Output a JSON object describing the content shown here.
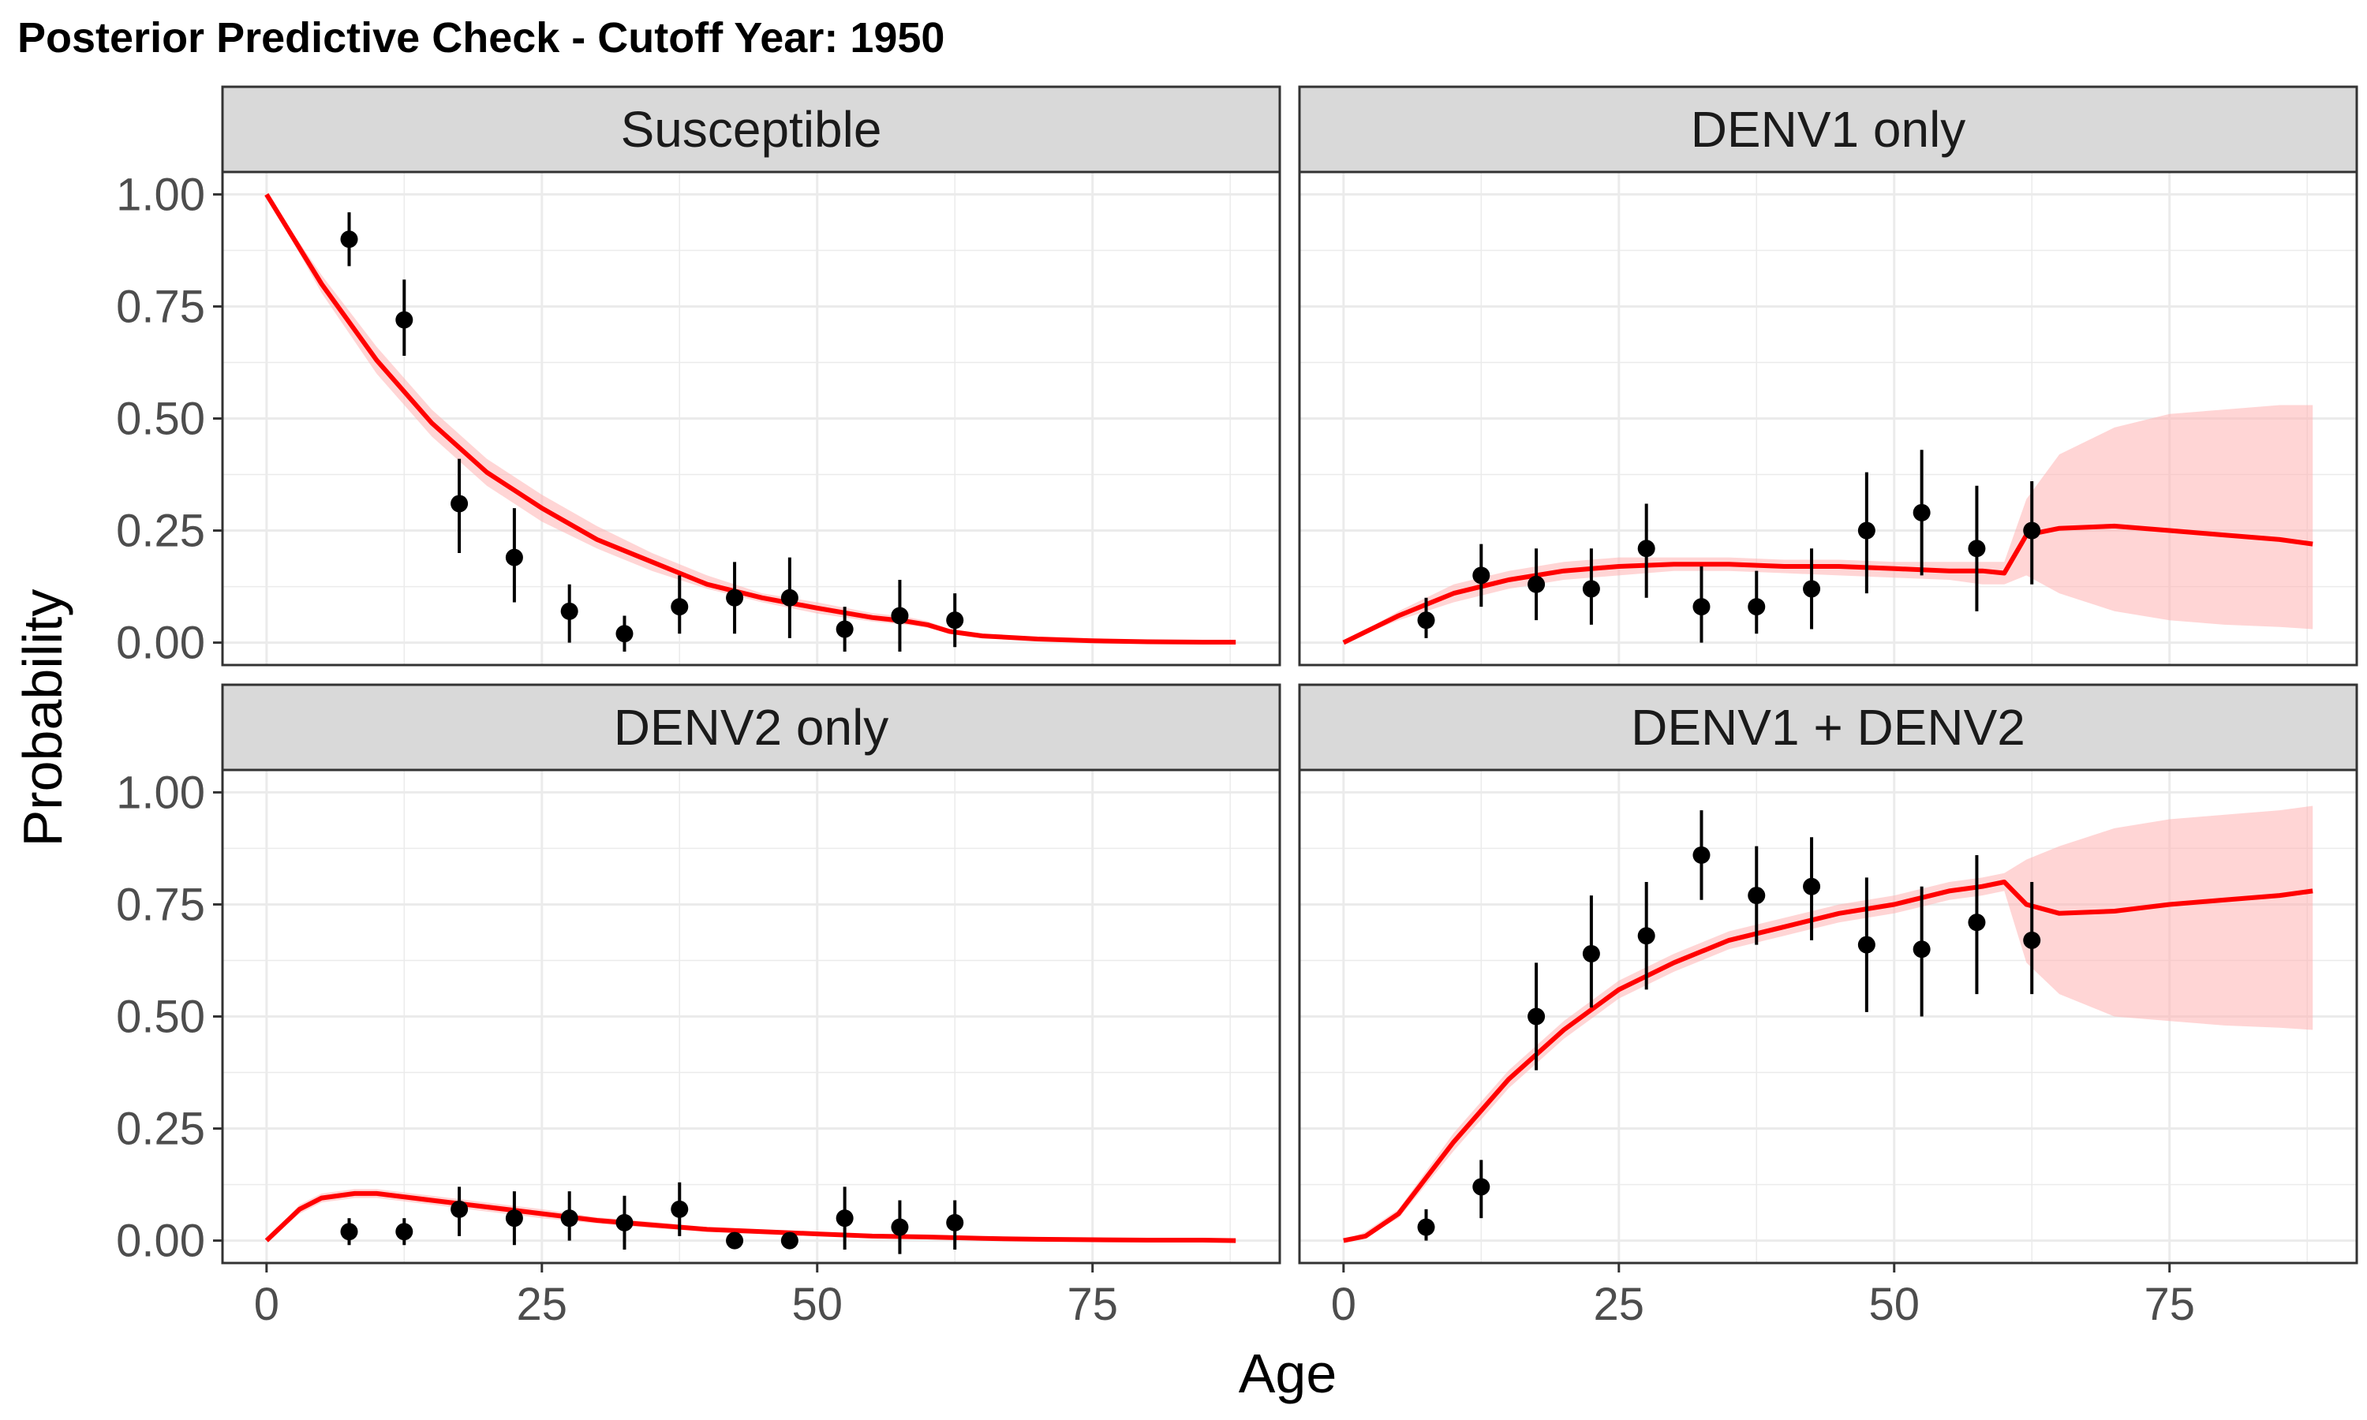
{
  "title": "Posterior Predictive Check - Cutoff Year: 1950",
  "colors": {
    "line": "#ff0000",
    "ribbon": "#ffb3b3",
    "points": "#000000",
    "strip_background": "#d9d9d9",
    "grid": "#ebebeb"
  },
  "chart_data": {
    "type": "scatter",
    "facet_layout": "2x2",
    "xlabel": "Age",
    "ylabel": "Probability",
    "xlim": [
      -4,
      92
    ],
    "ylim": [
      -0.05,
      1.05
    ],
    "xticks": [
      0,
      25,
      50,
      75
    ],
    "xtick_labels": [
      "0",
      "25",
      "50",
      "75"
    ],
    "yticks": [
      0,
      0.25,
      0.5,
      0.75,
      1.0
    ],
    "ytick_labels": [
      "0.00",
      "0.25",
      "0.50",
      "0.75",
      "1.00"
    ],
    "grid": true,
    "legend": "none",
    "panels": [
      {
        "name": "Susceptible",
        "observed": {
          "x": [
            7.5,
            12.5,
            17.5,
            22.5,
            27.5,
            32.5,
            37.5,
            42.5,
            47.5,
            52.5,
            57.5,
            62.5
          ],
          "y": [
            0.9,
            0.72,
            0.31,
            0.19,
            0.07,
            0.02,
            0.08,
            0.1,
            0.1,
            0.03,
            0.06,
            0.05
          ],
          "lower": [
            0.84,
            0.64,
            0.2,
            0.09,
            0.0,
            -0.02,
            0.02,
            0.02,
            0.01,
            -0.02,
            -0.02,
            -0.01
          ],
          "upper": [
            0.96,
            0.81,
            0.41,
            0.3,
            0.13,
            0.06,
            0.15,
            0.18,
            0.19,
            0.08,
            0.14,
            0.11
          ]
        },
        "fit": {
          "x": [
            0,
            5,
            10,
            15,
            20,
            25,
            30,
            35,
            40,
            45,
            50,
            55,
            58,
            60,
            62,
            65,
            70,
            75,
            80,
            85,
            88
          ],
          "y": [
            1.0,
            0.8,
            0.63,
            0.49,
            0.38,
            0.3,
            0.23,
            0.18,
            0.13,
            0.1,
            0.077,
            0.056,
            0.048,
            0.04,
            0.025,
            0.015,
            0.008,
            0.004,
            0.002,
            0.001,
            0.001
          ],
          "lower": [
            1.0,
            0.78,
            0.6,
            0.46,
            0.35,
            0.27,
            0.21,
            0.16,
            0.12,
            0.09,
            0.065,
            0.047,
            0.04,
            0.033,
            0.02,
            0.01,
            0.005,
            0.002,
            0.001,
            0.0,
            0.0
          ],
          "upper": [
            1.0,
            0.82,
            0.66,
            0.52,
            0.41,
            0.33,
            0.26,
            0.2,
            0.15,
            0.11,
            0.09,
            0.066,
            0.058,
            0.048,
            0.03,
            0.02,
            0.011,
            0.006,
            0.003,
            0.002,
            0.001
          ]
        }
      },
      {
        "name": "DENV1 only",
        "observed": {
          "x": [
            7.5,
            12.5,
            17.5,
            22.5,
            27.5,
            32.5,
            37.5,
            42.5,
            47.5,
            52.5,
            57.5,
            62.5
          ],
          "y": [
            0.05,
            0.15,
            0.13,
            0.12,
            0.21,
            0.08,
            0.08,
            0.12,
            0.25,
            0.29,
            0.21,
            0.25
          ],
          "lower": [
            0.01,
            0.08,
            0.05,
            0.04,
            0.1,
            0.0,
            0.02,
            0.03,
            0.11,
            0.15,
            0.07,
            0.13
          ],
          "upper": [
            0.1,
            0.22,
            0.21,
            0.21,
            0.31,
            0.17,
            0.16,
            0.21,
            0.38,
            0.43,
            0.35,
            0.36
          ]
        },
        "fit": {
          "x": [
            0,
            5,
            10,
            15,
            20,
            25,
            30,
            35,
            40,
            45,
            50,
            55,
            58,
            60,
            62,
            65,
            70,
            75,
            80,
            85,
            88
          ],
          "y": [
            0.0,
            0.06,
            0.11,
            0.14,
            0.16,
            0.17,
            0.175,
            0.175,
            0.17,
            0.17,
            0.165,
            0.16,
            0.16,
            0.155,
            0.24,
            0.255,
            0.26,
            0.25,
            0.24,
            0.23,
            0.22
          ],
          "lower": [
            0.0,
            0.05,
            0.09,
            0.12,
            0.14,
            0.15,
            0.16,
            0.16,
            0.155,
            0.15,
            0.145,
            0.14,
            0.13,
            0.13,
            0.15,
            0.11,
            0.07,
            0.05,
            0.04,
            0.035,
            0.03
          ],
          "upper": [
            0.0,
            0.07,
            0.13,
            0.16,
            0.18,
            0.19,
            0.19,
            0.19,
            0.185,
            0.185,
            0.18,
            0.18,
            0.18,
            0.18,
            0.32,
            0.42,
            0.48,
            0.51,
            0.52,
            0.53,
            0.53
          ]
        }
      },
      {
        "name": "DENV2 only",
        "observed": {
          "x": [
            7.5,
            12.5,
            17.5,
            22.5,
            27.5,
            32.5,
            37.5,
            42.5,
            47.5,
            52.5,
            57.5,
            62.5
          ],
          "y": [
            0.02,
            0.02,
            0.07,
            0.05,
            0.05,
            0.04,
            0.07,
            0.0,
            0.0,
            0.05,
            0.03,
            0.04
          ],
          "lower": [
            -0.01,
            -0.01,
            0.01,
            -0.01,
            0.0,
            -0.02,
            0.01,
            0.0,
            0.0,
            -0.02,
            -0.03,
            -0.02
          ],
          "upper": [
            0.05,
            0.05,
            0.12,
            0.11,
            0.11,
            0.1,
            0.13,
            0.0,
            0.0,
            0.12,
            0.09,
            0.09
          ]
        },
        "fit": {
          "x": [
            0,
            3,
            5,
            8,
            10,
            15,
            20,
            25,
            30,
            35,
            40,
            45,
            50,
            55,
            60,
            65,
            70,
            75,
            80,
            85,
            88
          ],
          "y": [
            0.0,
            0.07,
            0.095,
            0.105,
            0.105,
            0.09,
            0.075,
            0.06,
            0.045,
            0.035,
            0.025,
            0.02,
            0.015,
            0.01,
            0.008,
            0.005,
            0.003,
            0.002,
            0.001,
            0.001,
            0.0
          ],
          "lower": [
            0.0,
            0.06,
            0.085,
            0.095,
            0.095,
            0.08,
            0.065,
            0.05,
            0.038,
            0.028,
            0.02,
            0.015,
            0.011,
            0.008,
            0.005,
            0.003,
            0.002,
            0.001,
            0.0,
            0.0,
            0.0
          ],
          "upper": [
            0.0,
            0.08,
            0.105,
            0.115,
            0.115,
            0.1,
            0.085,
            0.07,
            0.052,
            0.042,
            0.03,
            0.025,
            0.019,
            0.013,
            0.011,
            0.007,
            0.004,
            0.003,
            0.002,
            0.001,
            0.001
          ]
        }
      },
      {
        "name": "DENV1 + DENV2",
        "observed": {
          "x": [
            7.5,
            12.5,
            17.5,
            22.5,
            27.5,
            32.5,
            37.5,
            42.5,
            47.5,
            52.5,
            57.5,
            62.5
          ],
          "y": [
            0.03,
            0.12,
            0.5,
            0.64,
            0.68,
            0.86,
            0.77,
            0.79,
            0.66,
            0.65,
            0.71,
            0.67
          ],
          "lower": [
            0.0,
            0.05,
            0.38,
            0.52,
            0.56,
            0.76,
            0.66,
            0.67,
            0.51,
            0.5,
            0.55,
            0.55
          ],
          "upper": [
            0.07,
            0.18,
            0.62,
            0.77,
            0.8,
            0.96,
            0.88,
            0.9,
            0.81,
            0.79,
            0.86,
            0.8
          ]
        },
        "fit": {
          "x": [
            0,
            2,
            5,
            10,
            15,
            20,
            25,
            30,
            35,
            40,
            45,
            50,
            55,
            58,
            60,
            62,
            65,
            70,
            75,
            80,
            85,
            88
          ],
          "y": [
            0.0,
            0.01,
            0.06,
            0.22,
            0.36,
            0.47,
            0.56,
            0.62,
            0.67,
            0.7,
            0.73,
            0.75,
            0.78,
            0.79,
            0.8,
            0.75,
            0.73,
            0.735,
            0.75,
            0.76,
            0.77,
            0.78
          ],
          "lower": [
            0.0,
            0.01,
            0.05,
            0.2,
            0.34,
            0.45,
            0.54,
            0.6,
            0.65,
            0.68,
            0.71,
            0.73,
            0.76,
            0.77,
            0.78,
            0.62,
            0.55,
            0.5,
            0.49,
            0.48,
            0.475,
            0.47
          ],
          "upper": [
            0.0,
            0.02,
            0.07,
            0.24,
            0.38,
            0.49,
            0.58,
            0.64,
            0.69,
            0.72,
            0.75,
            0.77,
            0.8,
            0.81,
            0.82,
            0.85,
            0.88,
            0.92,
            0.94,
            0.95,
            0.96,
            0.97
          ]
        }
      }
    ]
  }
}
